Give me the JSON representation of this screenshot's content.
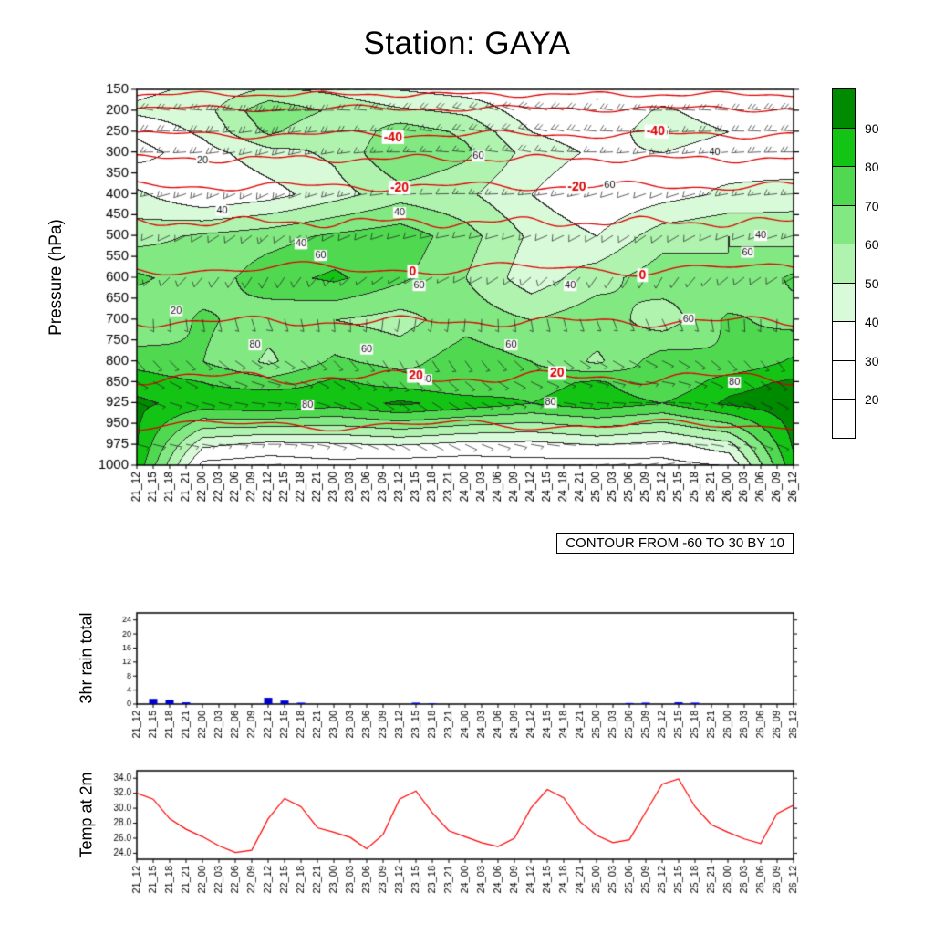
{
  "title": "Station: GAYA",
  "contour_note": "CONTOUR FROM -60 TO 30 BY 10",
  "time_labels": [
    "21_12",
    "21_15",
    "21_18",
    "21_21",
    "22_00",
    "22_03",
    "22_06",
    "22_09",
    "22_12",
    "22_15",
    "22_18",
    "22_21",
    "23_00",
    "23_03",
    "23_06",
    "23_09",
    "23_12",
    "23_15",
    "23_18",
    "23_21",
    "24_00",
    "24_03",
    "24_06",
    "24_09",
    "24_12",
    "24_15",
    "24_18",
    "24_21",
    "25_00",
    "25_03",
    "25_06",
    "25_09",
    "25_12",
    "25_15",
    "25_18",
    "25_21",
    "26_00",
    "26_03",
    "26_06",
    "26_09",
    "26_12"
  ],
  "chart_data": [
    {
      "type": "heatmap",
      "name": "humidity-wind-pressure-cross-section",
      "ylabel": "Pressure (hPa)",
      "yticks": [
        150,
        200,
        250,
        300,
        350,
        400,
        450,
        500,
        550,
        600,
        650,
        700,
        750,
        800,
        850,
        925,
        950,
        975,
        1000
      ],
      "colorbar_labels": [
        "90",
        "80",
        "70",
        "60",
        "50",
        "40",
        "30",
        "20"
      ],
      "colorbar_colors": [
        "#008a00",
        "#14c414",
        "#50d850",
        "#82e882",
        "#aff3af",
        "#d8fad8",
        "#ffffff",
        "#ffffff",
        "#ffffff"
      ],
      "contour_color": "#dd0000",
      "levels": [
        150,
        200,
        250,
        300,
        400,
        500,
        600,
        700,
        800,
        850,
        925,
        975,
        1000
      ],
      "humidity": [
        [
          38,
          42,
          52,
          48,
          40,
          36,
          32,
          30,
          34,
          30,
          36
        ],
        [
          42,
          46,
          68,
          58,
          52,
          48,
          34,
          30,
          42,
          34,
          40
        ],
        [
          32,
          42,
          62,
          50,
          66,
          58,
          40,
          34,
          46,
          40,
          34
        ],
        [
          26,
          36,
          46,
          52,
          70,
          62,
          46,
          38,
          40,
          34,
          30
        ],
        [
          42,
          30,
          36,
          46,
          56,
          52,
          40,
          30,
          36,
          42,
          46
        ],
        [
          56,
          62,
          66,
          72,
          76,
          64,
          48,
          40,
          56,
          60,
          56
        ],
        [
          72,
          64,
          76,
          82,
          72,
          60,
          44,
          56,
          66,
          60,
          72
        ],
        [
          60,
          72,
          64,
          60,
          56,
          66,
          60,
          66,
          54,
          72,
          66
        ],
        [
          76,
          70,
          58,
          72,
          66,
          76,
          70,
          58,
          76,
          70,
          82
        ],
        [
          86,
          80,
          74,
          82,
          76,
          70,
          76,
          82,
          70,
          86,
          92
        ],
        [
          92,
          86,
          90,
          84,
          92,
          86,
          80,
          86,
          80,
          92,
          96
        ],
        [
          90,
          42,
          36,
          38,
          40,
          36,
          36,
          40,
          36,
          46,
          92
        ],
        [
          86,
          26,
          24,
          26,
          24,
          24,
          26,
          24,
          26,
          30,
          88
        ]
      ],
      "wind_dir": [
        [
          285,
          280,
          270,
          265,
          275,
          280,
          290,
          285,
          275,
          280,
          285
        ],
        [
          280,
          275,
          265,
          270,
          280,
          285,
          290,
          280,
          270,
          275,
          280
        ],
        [
          275,
          270,
          260,
          265,
          275,
          280,
          285,
          275,
          265,
          270,
          275
        ],
        [
          270,
          265,
          255,
          260,
          270,
          275,
          280,
          270,
          260,
          265,
          270
        ],
        [
          260,
          250,
          245,
          255,
          265,
          270,
          265,
          255,
          250,
          260,
          265
        ],
        [
          250,
          240,
          230,
          245,
          255,
          260,
          250,
          240,
          235,
          250,
          255
        ],
        [
          230,
          220,
          210,
          225,
          240,
          245,
          230,
          215,
          210,
          230,
          240
        ],
        [
          180,
          170,
          160,
          175,
          190,
          185,
          170,
          160,
          155,
          175,
          185
        ],
        [
          140,
          130,
          120,
          135,
          150,
          145,
          130,
          120,
          115,
          135,
          145
        ],
        [
          120,
          115,
          105,
          120,
          135,
          130,
          115,
          105,
          100,
          120,
          130
        ],
        [
          110,
          105,
          95,
          110,
          125,
          120,
          105,
          95,
          90,
          110,
          120
        ],
        [
          105,
          100,
          90,
          105,
          120,
          115,
          100,
          90,
          85,
          105,
          115
        ],
        [
          100,
          95,
          85,
          100,
          115,
          110,
          95,
          85,
          80,
          100,
          110
        ]
      ],
      "wind_speed": [
        [
          25,
          28,
          30,
          26,
          22,
          24,
          27,
          25,
          23,
          26,
          28
        ],
        [
          22,
          25,
          28,
          24,
          20,
          22,
          25,
          23,
          21,
          24,
          26
        ],
        [
          20,
          22,
          25,
          21,
          18,
          20,
          22,
          20,
          18,
          21,
          23
        ],
        [
          18,
          20,
          22,
          19,
          16,
          18,
          20,
          18,
          16,
          19,
          21
        ],
        [
          15,
          17,
          18,
          16,
          14,
          15,
          17,
          15,
          13,
          16,
          18
        ],
        [
          12,
          14,
          15,
          13,
          11,
          12,
          14,
          12,
          10,
          13,
          15
        ],
        [
          10,
          11,
          12,
          10,
          9,
          10,
          11,
          10,
          8,
          10,
          12
        ],
        [
          8,
          9,
          10,
          8,
          7,
          8,
          9,
          8,
          7,
          8,
          9
        ],
        [
          7,
          8,
          8,
          7,
          6,
          7,
          8,
          7,
          6,
          7,
          8
        ],
        [
          6,
          7,
          7,
          6,
          5,
          6,
          7,
          6,
          5,
          6,
          7
        ],
        [
          6,
          6,
          7,
          6,
          5,
          6,
          6,
          5,
          5,
          6,
          6
        ],
        [
          5,
          5,
          6,
          5,
          4,
          5,
          5,
          4,
          4,
          5,
          5
        ],
        [
          5,
          5,
          6,
          5,
          4,
          5,
          5,
          4,
          4,
          5,
          5
        ]
      ],
      "temp_contours": [
        {
          "value": -60,
          "pressure": 162,
          "amp": 2,
          "freq": 5,
          "labels": []
        },
        {
          "value": -50,
          "pressure": 196,
          "amp": 2.5,
          "freq": 4,
          "labels": []
        },
        {
          "value": -40,
          "pressure": 258,
          "amp": 3,
          "freq": 4,
          "labels": [
            0.39,
            0.79
          ]
        },
        {
          "value": -30,
          "pressure": 316,
          "amp": 3,
          "freq": 5,
          "labels": []
        },
        {
          "value": -20,
          "pressure": 382,
          "amp": 3.5,
          "freq": 4,
          "labels": [
            0.4,
            0.67
          ]
        },
        {
          "value": -10,
          "pressure": 468,
          "amp": 4,
          "freq": 5,
          "labels": []
        },
        {
          "value": 0,
          "pressure": 580,
          "amp": 5,
          "freq": 3,
          "labels": [
            0.42,
            0.77
          ]
        },
        {
          "value": 10,
          "pressure": 706,
          "amp": 4,
          "freq": 4,
          "labels": []
        },
        {
          "value": 20,
          "pressure": 840,
          "amp": 5,
          "freq": 4,
          "labels": [
            0.425,
            0.64
          ]
        },
        {
          "value": 30,
          "pressure": 952,
          "amp": 4,
          "freq": 3,
          "labels": []
        }
      ],
      "black_labels": [
        {
          "t": "40",
          "x": 0.13,
          "p": 440
        },
        {
          "t": "20",
          "x": 0.1,
          "p": 320
        },
        {
          "t": "40",
          "x": 0.4,
          "p": 445
        },
        {
          "t": "60",
          "x": 0.52,
          "p": 310
        },
        {
          "t": "40",
          "x": 0.25,
          "p": 520
        },
        {
          "t": "60",
          "x": 0.28,
          "p": 548
        },
        {
          "t": "60",
          "x": 0.43,
          "p": 620
        },
        {
          "t": "40",
          "x": 0.66,
          "p": 620
        },
        {
          "t": "20",
          "x": 0.8,
          "p": 255
        },
        {
          "t": "60",
          "x": 0.93,
          "p": 540
        },
        {
          "t": "40",
          "x": 0.95,
          "p": 500
        },
        {
          "t": "80",
          "x": 0.18,
          "p": 762
        },
        {
          "t": "60",
          "x": 0.35,
          "p": 772
        },
        {
          "t": "80",
          "x": 0.44,
          "p": 845
        },
        {
          "t": "60",
          "x": 0.57,
          "p": 762
        },
        {
          "t": "80",
          "x": 0.63,
          "p": 925
        },
        {
          "t": "20",
          "x": 0.06,
          "p": 680
        },
        {
          "t": "60",
          "x": 0.84,
          "p": 700
        },
        {
          "t": "80",
          "x": 0.91,
          "p": 852
        },
        {
          "t": "80",
          "x": 0.26,
          "p": 928
        },
        {
          "t": "60",
          "x": 0.72,
          "p": 380
        },
        {
          "t": "40",
          "x": 0.88,
          "p": 300
        }
      ]
    },
    {
      "type": "bar",
      "name": "rain-3hr-total",
      "ylabel": "3hr rain total",
      "yticks": [
        0,
        4,
        8,
        12,
        16,
        20,
        24
      ],
      "ymax": 26,
      "bar_color": "#0000cc",
      "values": [
        0,
        1.5,
        1.2,
        0.5,
        0,
        0,
        0,
        0,
        1.8,
        1.0,
        0.4,
        0,
        0,
        0,
        0,
        0,
        0,
        0.4,
        0.2,
        0,
        0,
        0,
        0,
        0,
        0,
        0,
        0,
        0,
        0,
        0,
        0.3,
        0.4,
        0,
        0.5,
        0.4,
        0,
        0,
        0,
        0,
        0,
        0
      ]
    },
    {
      "type": "line",
      "name": "temp-at-2m",
      "ylabel": "Temp at 2m",
      "yticks": [
        24,
        26,
        28,
        30,
        32,
        34
      ],
      "ymin": 23.2,
      "ymax": 35.0,
      "line_color": "#ff0000",
      "values": [
        32.0,
        31.2,
        28.6,
        27.2,
        26.2,
        25.0,
        24.1,
        24.4,
        28.6,
        31.3,
        30.2,
        27.4,
        26.8,
        26.1,
        24.6,
        26.5,
        31.2,
        32.3,
        29.4,
        27.0,
        26.2,
        25.4,
        24.9,
        26.0,
        30.0,
        32.5,
        31.4,
        28.2,
        26.4,
        25.4,
        25.8,
        29.5,
        33.2,
        33.9,
        30.2,
        27.8,
        26.8,
        25.9,
        25.3,
        29.3,
        30.4
      ]
    }
  ]
}
